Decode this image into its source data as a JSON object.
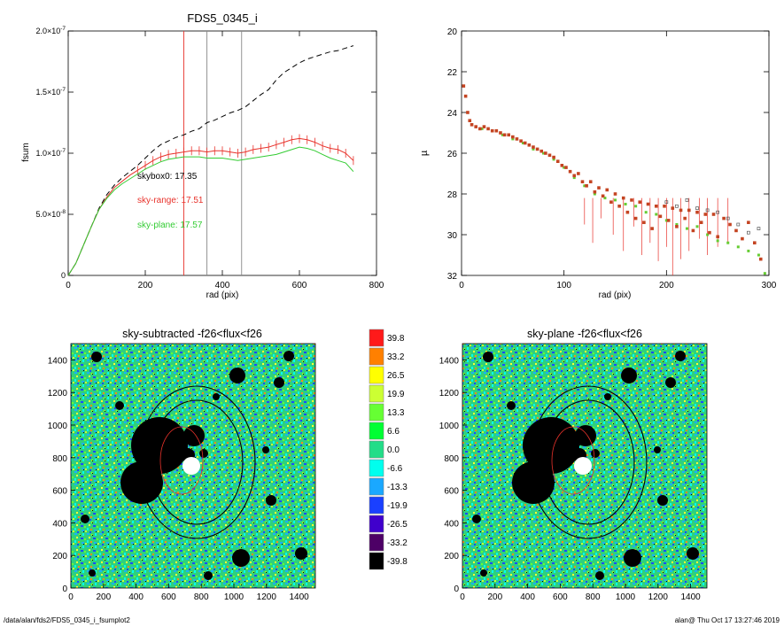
{
  "footer": {
    "path": "/data/alan/fds2/FDS5_0345_i_fsumplot2",
    "stamp": "alan@  Thu Oct 17 13:27:46 2019"
  },
  "chart_data": [
    {
      "type": "line",
      "title": "FDS5_0345_i",
      "xlabel": "rad (pix)",
      "ylabel": "fsum",
      "xlim": [
        0,
        800
      ],
      "ylim": [
        0,
        2e-07
      ],
      "xticks": [
        "0",
        "200",
        "400",
        "600",
        "800"
      ],
      "yticks": [
        {
          "value": 0,
          "label": "0"
        },
        {
          "value": 5e-08,
          "label": "5.0×10",
          "exp": "-8"
        },
        {
          "value": 1e-07,
          "label": "1.0×10",
          "exp": "-7"
        },
        {
          "value": 1.5e-07,
          "label": "1.5×10",
          "exp": "-7"
        },
        {
          "value": 2e-07,
          "label": "2.0×10",
          "exp": "-7"
        }
      ],
      "vlines": [
        {
          "x": 300,
          "color": "#e8322b"
        },
        {
          "x": 360,
          "color": "#888888"
        },
        {
          "x": 450,
          "color": "#888888"
        }
      ],
      "annotations": [
        {
          "text": "skybox0: 17.35",
          "color": "#000000"
        },
        {
          "text": "sky-range: 17.51",
          "color": "#e8322b"
        },
        {
          "text": "sky-plane: 17.57",
          "color": "#33cc33"
        }
      ],
      "series": [
        {
          "style": "dashed",
          "color": "#000000",
          "x": [
            0,
            20,
            40,
            60,
            80,
            100,
            120,
            140,
            160,
            180,
            200,
            220,
            240,
            260,
            280,
            300,
            320,
            340,
            360,
            380,
            400,
            420,
            440,
            460,
            480,
            500,
            520,
            540,
            560,
            580,
            600,
            620,
            640,
            660,
            680,
            700,
            720,
            740
          ],
          "y": [
            0,
            1e-08,
            2.5e-08,
            4e-08,
            5.5e-08,
            6.6e-08,
            7.4e-08,
            8e-08,
            8.5e-08,
            9e-08,
            9.6e-08,
            1.02e-07,
            1.07e-07,
            1.1e-07,
            1.13e-07,
            1.15e-07,
            1.18e-07,
            1.2e-07,
            1.25e-07,
            1.27e-07,
            1.3e-07,
            1.33e-07,
            1.35e-07,
            1.38e-07,
            1.43e-07,
            1.48e-07,
            1.52e-07,
            1.6e-07,
            1.66e-07,
            1.7e-07,
            1.74e-07,
            1.77e-07,
            1.79e-07,
            1.81e-07,
            1.83e-07,
            1.84e-07,
            1.86e-07,
            1.88e-07
          ]
        },
        {
          "style": "solid",
          "color": "#e8322b",
          "x": [
            0,
            20,
            40,
            60,
            80,
            100,
            120,
            140,
            160,
            180,
            200,
            220,
            240,
            260,
            280,
            300,
            320,
            340,
            360,
            380,
            400,
            420,
            440,
            460,
            480,
            500,
            520,
            540,
            560,
            580,
            600,
            620,
            640,
            660,
            680,
            700,
            720,
            740
          ],
          "y": [
            0,
            1e-08,
            2.5e-08,
            4e-08,
            5.4e-08,
            6.4e-08,
            7.2e-08,
            7.7e-08,
            8.2e-08,
            8.6e-08,
            9e-08,
            9.4e-08,
            9.7e-08,
            9.9e-08,
            1e-07,
            1.01e-07,
            1.02e-07,
            1.02e-07,
            1.01e-07,
            1.02e-07,
            1.02e-07,
            1.01e-07,
            1e-07,
            1.01e-07,
            1.03e-07,
            1.04e-07,
            1.05e-07,
            1.07e-07,
            1.09e-07,
            1.11e-07,
            1.12e-07,
            1.11e-07,
            1.09e-07,
            1.06e-07,
            1.04e-07,
            1.03e-07,
            1e-07,
            9.4e-08
          ]
        },
        {
          "style": "solid",
          "color": "#33cc33",
          "x": [
            0,
            20,
            40,
            60,
            80,
            100,
            120,
            140,
            160,
            180,
            200,
            220,
            240,
            260,
            280,
            300,
            320,
            340,
            360,
            380,
            400,
            420,
            440,
            460,
            480,
            500,
            520,
            540,
            560,
            580,
            600,
            620,
            640,
            660,
            680,
            700,
            720,
            740
          ],
          "y": [
            0,
            1e-08,
            2.5e-08,
            4e-08,
            5.4e-08,
            6.3e-08,
            7e-08,
            7.5e-08,
            7.9e-08,
            8.3e-08,
            8.7e-08,
            9e-08,
            9.3e-08,
            9.5e-08,
            9.6e-08,
            9.7e-08,
            9.7e-08,
            9.7e-08,
            9.6e-08,
            9.6e-08,
            9.6e-08,
            9.5e-08,
            9.4e-08,
            9.5e-08,
            9.6e-08,
            9.7e-08,
            9.8e-08,
            9.9e-08,
            1.01e-07,
            1.03e-07,
            1.05e-07,
            1.04e-07,
            1.02e-07,
            9.9e-08,
            9.6e-08,
            9.4e-08,
            9.2e-08,
            8.5e-08
          ]
        }
      ]
    },
    {
      "type": "scatter",
      "xlabel": "rad (pix)",
      "ylabel": "µ",
      "xlim": [
        0,
        300
      ],
      "ylim": [
        32,
        20
      ],
      "xticks": [
        "0",
        "100",
        "200",
        "300"
      ],
      "yticks": [
        "20",
        "22",
        "24",
        "26",
        "28",
        "30",
        "32"
      ],
      "points_red": [
        [
          2,
          22.7
        ],
        [
          4,
          23.2
        ],
        [
          6,
          24.0
        ],
        [
          8,
          24.4
        ],
        [
          10,
          24.6
        ],
        [
          14,
          24.7
        ],
        [
          18,
          24.8
        ],
        [
          22,
          24.7
        ],
        [
          26,
          24.8
        ],
        [
          30,
          24.9
        ],
        [
          34,
          24.9
        ],
        [
          38,
          25.0
        ],
        [
          42,
          25.1
        ],
        [
          46,
          25.1
        ],
        [
          50,
          25.2
        ],
        [
          54,
          25.3
        ],
        [
          58,
          25.4
        ],
        [
          62,
          25.5
        ],
        [
          66,
          25.6
        ],
        [
          70,
          25.7
        ],
        [
          74,
          25.8
        ],
        [
          78,
          25.9
        ],
        [
          82,
          26.0
        ],
        [
          86,
          26.1
        ],
        [
          90,
          26.2
        ],
        [
          94,
          26.4
        ],
        [
          98,
          26.6
        ],
        [
          102,
          26.7
        ],
        [
          106,
          26.9
        ],
        [
          110,
          27.1
        ],
        [
          114,
          27.0
        ],
        [
          118,
          27.4
        ],
        [
          122,
          27.6
        ],
        [
          126,
          27.4
        ],
        [
          130,
          27.9
        ],
        [
          134,
          27.7
        ],
        [
          138,
          28.1
        ],
        [
          142,
          27.8
        ],
        [
          146,
          28.4
        ],
        [
          150,
          28.0
        ],
        [
          154,
          28.6
        ],
        [
          158,
          28.2
        ],
        [
          162,
          28.9
        ],
        [
          166,
          28.3
        ],
        [
          170,
          29.2
        ],
        [
          174,
          28.4
        ],
        [
          178,
          29.4
        ],
        [
          182,
          28.5
        ],
        [
          186,
          29.7
        ],
        [
          190,
          28.6
        ],
        [
          194,
          29.1
        ],
        [
          198,
          28.6
        ],
        [
          202,
          29.3
        ],
        [
          206,
          28.7
        ],
        [
          210,
          29.6
        ],
        [
          214,
          28.8
        ],
        [
          218,
          29.2
        ],
        [
          222,
          28.8
        ],
        [
          226,
          29.8
        ],
        [
          230,
          28.9
        ],
        [
          234,
          29.4
        ],
        [
          238,
          29.0
        ],
        [
          242,
          29.9
        ],
        [
          246,
          29.0
        ],
        [
          250,
          30.1
        ],
        [
          256,
          29.2
        ],
        [
          262,
          29.5
        ],
        [
          268,
          29.8
        ],
        [
          274,
          30.2
        ],
        [
          280,
          29.4
        ],
        [
          286,
          30.4
        ],
        [
          292,
          31.2
        ]
      ],
      "points_green": [
        [
          10,
          24.6
        ],
        [
          20,
          24.8
        ],
        [
          30,
          24.9
        ],
        [
          40,
          25.1
        ],
        [
          50,
          25.3
        ],
        [
          60,
          25.5
        ],
        [
          70,
          25.8
        ],
        [
          80,
          26.0
        ],
        [
          90,
          26.3
        ],
        [
          100,
          26.7
        ],
        [
          110,
          27.2
        ],
        [
          120,
          27.6
        ],
        [
          130,
          28.0
        ],
        [
          140,
          28.2
        ],
        [
          150,
          28.3
        ],
        [
          160,
          28.5
        ],
        [
          170,
          28.6
        ],
        [
          180,
          28.9
        ],
        [
          190,
          29.0
        ],
        [
          200,
          29.3
        ],
        [
          210,
          29.5
        ],
        [
          220,
          29.7
        ],
        [
          230,
          29.6
        ],
        [
          240,
          30.0
        ],
        [
          250,
          30.3
        ],
        [
          260,
          30.4
        ],
        [
          270,
          30.6
        ],
        [
          280,
          30.8
        ],
        [
          290,
          31.0
        ],
        [
          296,
          31.9
        ]
      ],
      "points_grey": [
        [
          200,
          28.4
        ],
        [
          210,
          28.6
        ],
        [
          220,
          28.3
        ],
        [
          230,
          28.7
        ],
        [
          240,
          28.8
        ],
        [
          250,
          28.9
        ],
        [
          260,
          29.2
        ],
        [
          270,
          29.5
        ],
        [
          280,
          29.9
        ],
        [
          290,
          29.7
        ]
      ],
      "drops": [
        [
          120,
          29.5
        ],
        [
          128,
          30.4
        ],
        [
          136,
          29.2
        ],
        [
          148,
          30.0
        ],
        [
          158,
          30.8
        ],
        [
          168,
          29.6
        ],
        [
          176,
          31.0
        ],
        [
          184,
          30.4
        ],
        [
          192,
          31.3
        ],
        [
          200,
          30.6
        ],
        [
          206,
          32.0
        ],
        [
          214,
          31.2
        ],
        [
          222,
          30.8
        ],
        [
          232,
          30.2
        ],
        [
          240,
          31.0
        ],
        [
          250,
          30.6
        ],
        [
          260,
          30.4
        ]
      ]
    },
    {
      "type": "heatmap",
      "title": "sky-subtracted -f26<flux<f26",
      "xlim": [
        0,
        1500
      ],
      "ylim": [
        0,
        1500
      ],
      "xticks": [
        "0",
        "200",
        "400",
        "600",
        "800",
        "1000",
        "1200",
        "1400"
      ],
      "yticks": [
        "0",
        "200",
        "400",
        "600",
        "800",
        "1000",
        "1200",
        "1400"
      ]
    },
    {
      "type": "heatmap",
      "title": "sky-plane -f26<flux<f26",
      "xlim": [
        0,
        1500
      ],
      "ylim": [
        0,
        1500
      ],
      "xticks": [
        "0",
        "200",
        "400",
        "600",
        "800",
        "1000",
        "1200",
        "1400"
      ],
      "yticks": [
        "0",
        "200",
        "400",
        "600",
        "800",
        "1000",
        "1200",
        "1400"
      ]
    }
  ],
  "colorbar": {
    "entries": [
      {
        "label": "39.8",
        "color": "#ff1a1a"
      },
      {
        "label": "33.2",
        "color": "#ff8000"
      },
      {
        "label": "26.5",
        "color": "#ffff00"
      },
      {
        "label": "19.9",
        "color": "#ccff33"
      },
      {
        "label": "13.3",
        "color": "#66ff33"
      },
      {
        "label": "6.6",
        "color": "#00ff33"
      },
      {
        "label": "0.0",
        "color": "#22dd88"
      },
      {
        "label": "-6.6",
        "color": "#00ffee"
      },
      {
        "label": "-13.3",
        "color": "#1aa8ff"
      },
      {
        "label": "-19.9",
        "color": "#1a40ff"
      },
      {
        "label": "-26.5",
        "color": "#4000cc"
      },
      {
        "label": "-33.2",
        "color": "#4d0066"
      },
      {
        "label": "-39.8",
        "color": "#000000"
      }
    ]
  }
}
